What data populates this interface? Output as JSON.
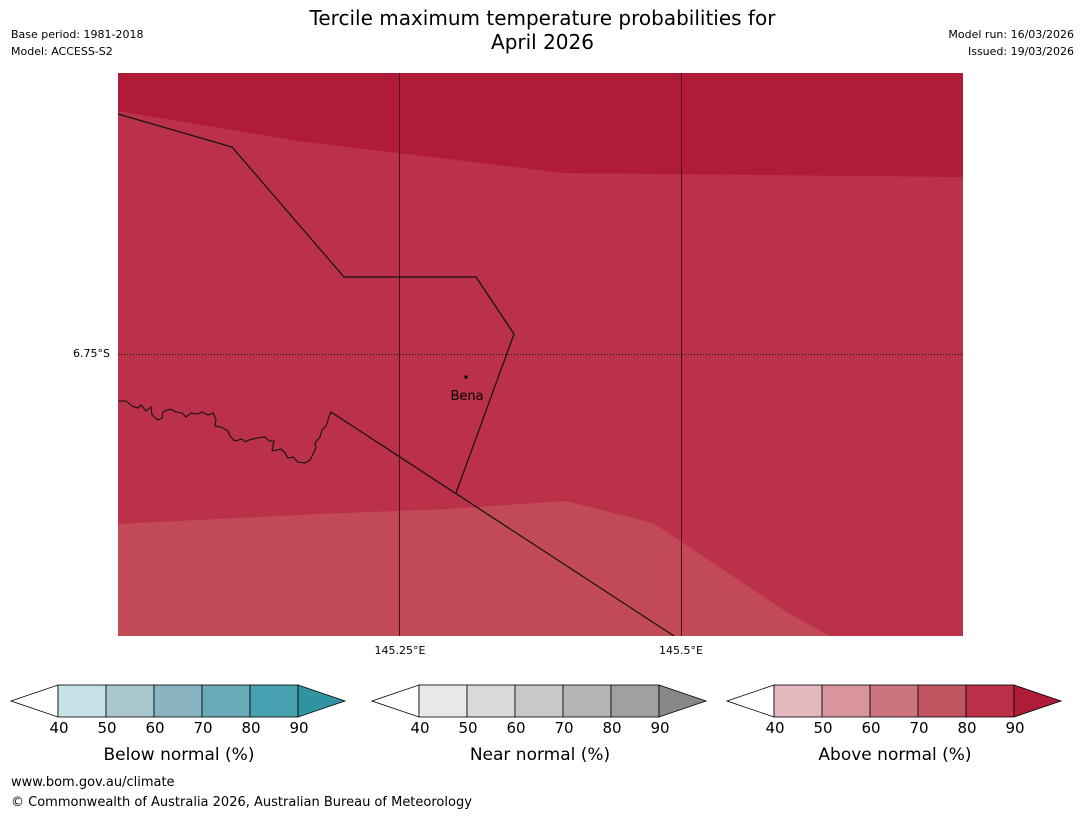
{
  "header": {
    "title_line1": "Tercile maximum temperature probabilities for",
    "title_line2": "April 2026",
    "base_period": "Base period: 1981-2018",
    "model": "Model: ACCESS-S2",
    "model_run": "Model run: 16/03/2026",
    "issued": "Issued: 19/03/2026"
  },
  "map": {
    "lat_label": "6.75°S",
    "lon_labels": [
      "145.25°E",
      "145.5°E"
    ],
    "place": "Bena",
    "fill_colors": {
      "above_90": "#b01c38",
      "above_80": "#bb3149",
      "above_70": "#c24a56"
    }
  },
  "colorbars": [
    {
      "title": "Below normal (%)",
      "ticks": [
        "40",
        "50",
        "60",
        "70",
        "80",
        "90"
      ],
      "colors": [
        "#ffffff",
        "#c8e1e6",
        "#a8c8cd",
        "#89b4c1",
        "#6aabba",
        "#47a1ae",
        "#2f93a2"
      ]
    },
    {
      "title": "Near normal (%)",
      "ticks": [
        "40",
        "50",
        "60",
        "70",
        "80",
        "90"
      ],
      "colors": [
        "#ffffff",
        "#e8e8e8",
        "#d9d9d9",
        "#c8c8c8",
        "#b4b4b4",
        "#a0a0a0",
        "#888888"
      ]
    },
    {
      "title": "Above normal (%)",
      "ticks": [
        "40",
        "50",
        "60",
        "70",
        "80",
        "90"
      ],
      "colors": [
        "#ffffff",
        "#e3b9bf",
        "#d8959d",
        "#cc757e",
        "#c25562",
        "#bb3149",
        "#b01c38"
      ]
    }
  ],
  "footer": {
    "url": "www.bom.gov.au/climate",
    "copyright": "© Commonwealth of Australia 2026, Australian Bureau of Meteorology"
  }
}
